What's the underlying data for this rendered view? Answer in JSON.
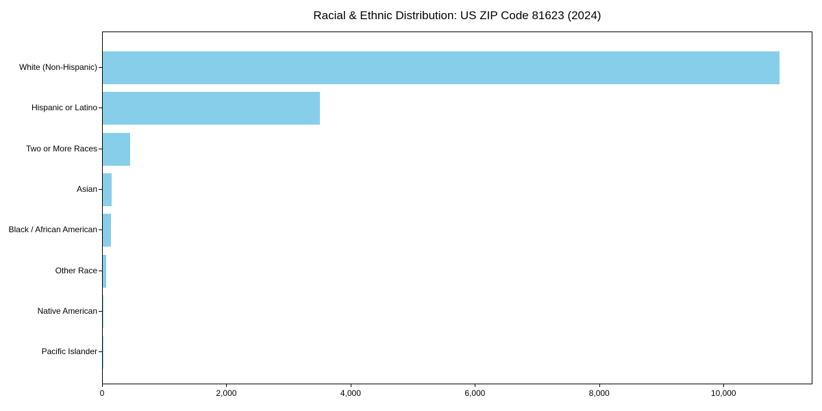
{
  "chart_data": {
    "type": "bar",
    "orientation": "horizontal",
    "title": "Racial & Ethnic Distribution: US ZIP Code 81623 (2024)",
    "categories": [
      "White (Non-Hispanic)",
      "Hispanic or Latino",
      "Two or More Races",
      "Asian",
      "Black / African American",
      "Other Race",
      "Native American",
      "Pacific Islander"
    ],
    "values": [
      10890,
      3490,
      445,
      140,
      130,
      50,
      15,
      3
    ],
    "xlabel": "",
    "ylabel": "",
    "xlim": [
      0,
      11430
    ],
    "x_ticks": [
      0,
      2000,
      4000,
      6000,
      8000,
      10000
    ],
    "x_tick_labels": [
      "0",
      "2,000",
      "4,000",
      "6,000",
      "8,000",
      "10,000"
    ],
    "bar_color": "#87CEEB",
    "axis_color": "#000000",
    "background_color": "#ffffff",
    "grid": "off",
    "legend": "none"
  }
}
